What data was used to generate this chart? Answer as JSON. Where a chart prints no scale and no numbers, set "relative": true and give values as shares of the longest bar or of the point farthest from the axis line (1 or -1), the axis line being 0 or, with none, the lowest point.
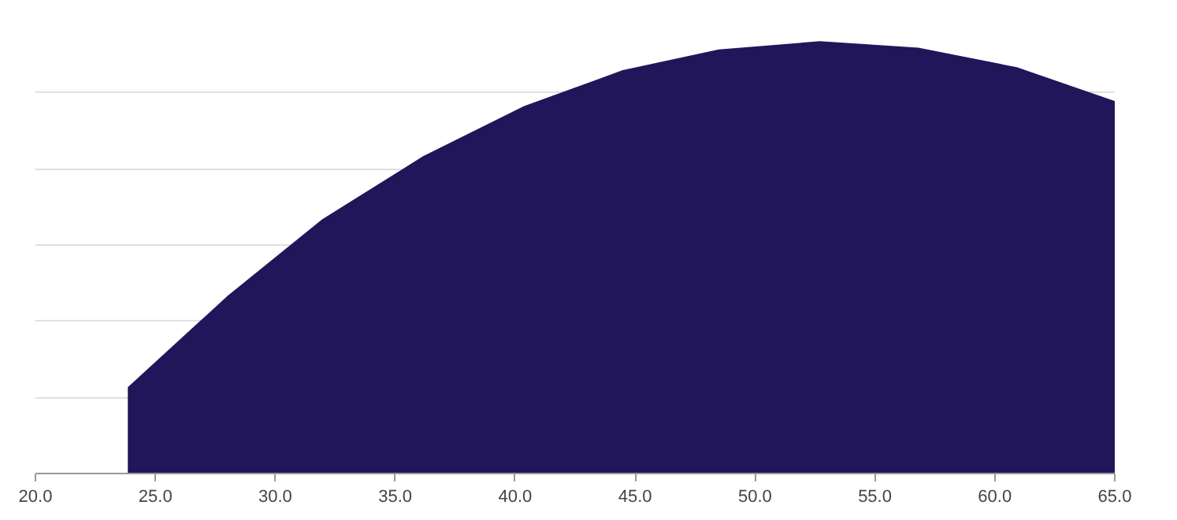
{
  "chart_data": {
    "type": "area",
    "relative": true,
    "color": "#22165a",
    "grid": "y",
    "x": [
      23.9,
      28.0,
      32.0,
      36.2,
      40.4,
      44.5,
      48.5,
      52.7,
      56.8,
      60.9,
      65.0
    ],
    "values": [
      0.199,
      0.408,
      0.588,
      0.734,
      0.85,
      0.933,
      0.981,
      1.0,
      0.985,
      0.94,
      0.861
    ],
    "xlim": [
      20.0,
      65.0
    ],
    "xticks": [
      {
        "value": 20,
        "label": "20.0"
      },
      {
        "value": 25,
        "label": "25.0"
      },
      {
        "value": 30,
        "label": "30.0"
      },
      {
        "value": 35,
        "label": "35.0"
      },
      {
        "value": 40,
        "label": "40.0"
      },
      {
        "value": 45,
        "label": "45.0"
      },
      {
        "value": 50,
        "label": "50.0"
      },
      {
        "value": 55,
        "label": "55.0"
      },
      {
        "value": 60,
        "label": "60.0"
      },
      {
        "value": 65,
        "label": "65.0"
      }
    ]
  }
}
